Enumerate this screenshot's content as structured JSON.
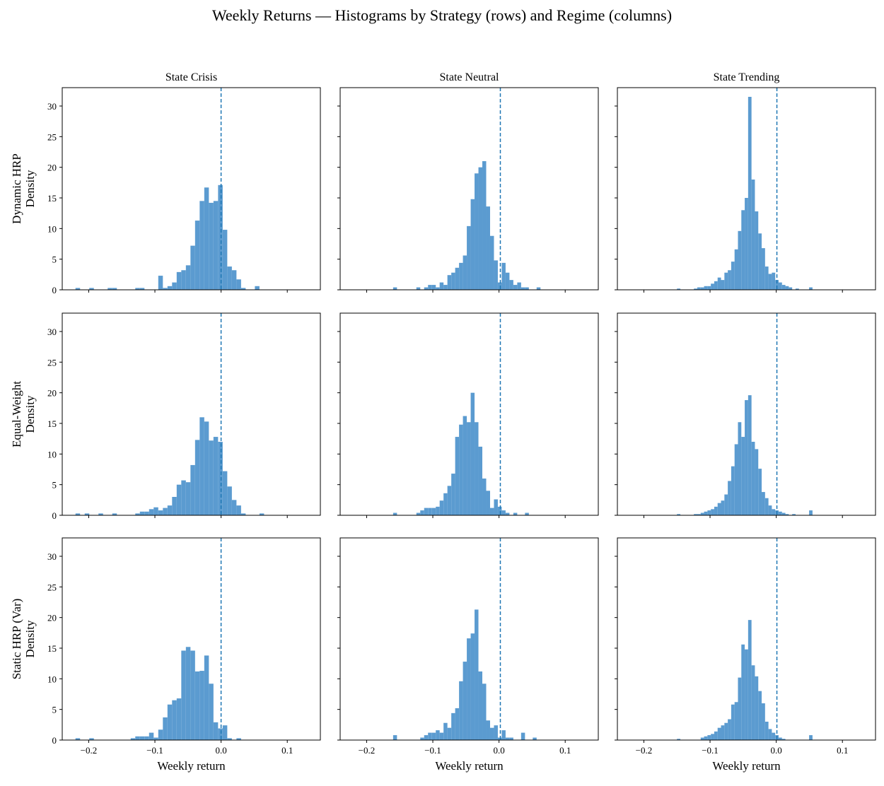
{
  "figure": {
    "title": "Weekly Returns — Histograms by Strategy (rows) and Regime (columns)"
  },
  "chart_data": {
    "type": "histogram-grid",
    "title": "Weekly Returns — Histograms by Strategy (rows) and Regime (columns)",
    "columns": [
      "State Crisis",
      "State Neutral",
      "State Trending"
    ],
    "rows": [
      "Dynamic HRP",
      "Equal-Weight",
      "Static HRP (Var)"
    ],
    "ylabel": "Density",
    "xlabel": "Weekly return",
    "xlim": [
      -0.24,
      0.15
    ],
    "ylim": [
      0,
      33
    ],
    "xticks": [
      -0.2,
      -0.1,
      0.0,
      0.1
    ],
    "xtick_labels": [
      "−0.2",
      "−0.1",
      "0.0",
      "0.1"
    ],
    "yticks": [
      0,
      5,
      10,
      15,
      20,
      25,
      30
    ],
    "ytick_labels": [
      "0",
      "5",
      "10",
      "15",
      "20",
      "25",
      "30"
    ],
    "bar_color": "#5B9BD0",
    "mean_line_color": "#1F77B4",
    "panels": [
      {
        "row": 0,
        "col": 0,
        "mean": 0.0,
        "start": -0.22,
        "width": 0.00695,
        "values": [
          0.3,
          0,
          0,
          0.3,
          0,
          0,
          0,
          0.3,
          0.3,
          0,
          0,
          0,
          0,
          0.3,
          0.3,
          0,
          0,
          0,
          2.3,
          0.3,
          0.6,
          1.2,
          2.9,
          3.2,
          4.0,
          7.2,
          11.3,
          14.5,
          16.7,
          14.2,
          14.5,
          17.1,
          9.8,
          3.8,
          3.2,
          1.7,
          0.3,
          0,
          0,
          0.6,
          0,
          0,
          0,
          0
        ]
      },
      {
        "row": 0,
        "col": 1,
        "mean": 0.002,
        "start": -0.16,
        "width": 0.00586,
        "values": [
          0.4,
          0,
          0,
          0,
          0,
          0,
          0.4,
          0,
          0.4,
          0.8,
          0.8,
          0.4,
          1.2,
          0.8,
          2.4,
          2.8,
          3.6,
          4.4,
          5.6,
          10.4,
          14.8,
          19.0,
          20.0,
          21.0,
          13.6,
          8.8,
          4.8,
          1.2,
          4.4,
          2.8,
          1.6,
          0.8,
          1.2,
          0.4,
          0.4,
          0,
          0,
          0.4
        ]
      },
      {
        "row": 0,
        "col": 2,
        "mean": 0.001,
        "start": -0.15,
        "width": 0.00512,
        "values": [
          0.2,
          0,
          0,
          0,
          0,
          0.2,
          0.4,
          0.4,
          0.6,
          0.6,
          1.0,
          1.4,
          2.0,
          1.6,
          2.8,
          3.2,
          4.6,
          6.6,
          9.6,
          13.0,
          15.0,
          31.5,
          18.0,
          12.8,
          9.2,
          6.8,
          3.8,
          2.6,
          2.8,
          1.6,
          1.2,
          0.8,
          0.6,
          0.4,
          0,
          0.2,
          0,
          0,
          0,
          0.4
        ]
      },
      {
        "row": 1,
        "col": 0,
        "mean": 0.0,
        "start": -0.22,
        "width": 0.00695,
        "values": [
          0.3,
          0,
          0.3,
          0,
          0,
          0.3,
          0,
          0,
          0.3,
          0,
          0,
          0,
          0,
          0.3,
          0.6,
          0.6,
          1.0,
          1.3,
          0.8,
          1.2,
          1.6,
          3.0,
          5.0,
          5.7,
          5.4,
          8.2,
          12.3,
          16.0,
          15.3,
          12.2,
          12.8,
          12.0,
          7.2,
          4.7,
          2.5,
          1.6,
          0.3,
          0,
          0,
          0,
          0.3,
          0,
          0,
          0
        ]
      },
      {
        "row": 1,
        "col": 1,
        "mean": 0.002,
        "start": -0.16,
        "width": 0.00586,
        "values": [
          0.4,
          0,
          0,
          0,
          0,
          0,
          0.4,
          0.8,
          1.2,
          1.2,
          1.2,
          1.4,
          2.4,
          3.6,
          4.8,
          6.8,
          12.8,
          14.8,
          16.2,
          15.2,
          20.0,
          15.2,
          11.2,
          6.0,
          4.0,
          1.2,
          2.6,
          1.4,
          0.8,
          0.4,
          0,
          0.4,
          0,
          0,
          0.4,
          0,
          0,
          0
        ]
      },
      {
        "row": 1,
        "col": 2,
        "mean": 0.001,
        "start": -0.15,
        "width": 0.00512,
        "values": [
          0.2,
          0,
          0,
          0,
          0,
          0.2,
          0.2,
          0.4,
          0.6,
          0.8,
          1.0,
          1.4,
          2.0,
          2.4,
          3.4,
          5.6,
          8.0,
          11.6,
          15.2,
          12.8,
          18.8,
          19.6,
          12.0,
          10.8,
          7.6,
          3.8,
          2.8,
          1.6,
          1.0,
          0.8,
          0.6,
          0.4,
          0.2,
          0,
          0.2,
          0,
          0,
          0,
          0,
          0.8
        ]
      },
      {
        "row": 2,
        "col": 0,
        "mean": 0.0,
        "start": -0.22,
        "width": 0.00695,
        "values": [
          0.3,
          0,
          0,
          0.3,
          0,
          0,
          0,
          0,
          0,
          0,
          0,
          0,
          0.3,
          0.6,
          0.6,
          0.6,
          1.2,
          0.4,
          1.7,
          3.7,
          5.8,
          6.5,
          6.8,
          14.6,
          15.2,
          14.6,
          11.2,
          11.3,
          13.8,
          9.2,
          2.9,
          1.9,
          2.4,
          0.3,
          0,
          0.3,
          0,
          0,
          0,
          0,
          0,
          0,
          0,
          0
        ]
      },
      {
        "row": 2,
        "col": 1,
        "mean": 0.002,
        "start": -0.16,
        "width": 0.00586,
        "values": [
          0.8,
          0,
          0,
          0,
          0,
          0,
          0,
          0.4,
          0.8,
          1.2,
          1.2,
          1.6,
          1.2,
          2.8,
          2.0,
          4.4,
          5.2,
          9.6,
          12.8,
          16.6,
          17.4,
          21.3,
          11.2,
          9.2,
          3.2,
          2.0,
          2.4,
          0.4,
          1.6,
          0.4,
          0.4,
          0,
          0,
          1.2,
          0,
          0,
          0.4,
          0
        ]
      },
      {
        "row": 2,
        "col": 2,
        "mean": 0.001,
        "start": -0.15,
        "width": 0.00512,
        "values": [
          0.2,
          0,
          0,
          0,
          0,
          0,
          0,
          0.4,
          0.6,
          0.8,
          1.0,
          1.4,
          2.0,
          2.4,
          2.8,
          3.4,
          5.8,
          6.2,
          10.2,
          15.6,
          14.8,
          19.6,
          12.2,
          10.4,
          8.0,
          6.0,
          3.0,
          1.8,
          1.2,
          0.8,
          0.4,
          0.2,
          0,
          0,
          0,
          0,
          0,
          0,
          0,
          0.8
        ]
      }
    ]
  }
}
